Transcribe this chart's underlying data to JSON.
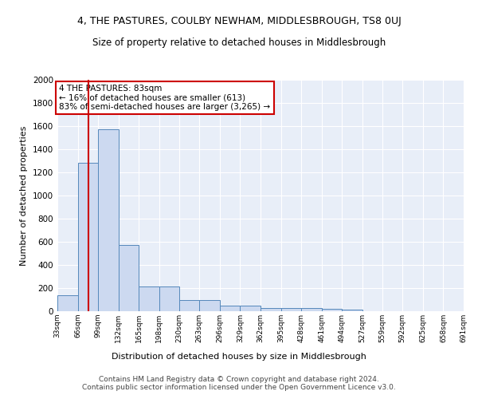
{
  "title": "4, THE PASTURES, COULBY NEWHAM, MIDDLESBROUGH, TS8 0UJ",
  "subtitle": "Size of property relative to detached houses in Middlesbrough",
  "xlabel": "Distribution of detached houses by size in Middlesbrough",
  "ylabel": "Number of detached properties",
  "bin_edges": [
    33,
    66,
    99,
    132,
    165,
    198,
    230,
    263,
    296,
    329,
    362,
    395,
    428,
    461,
    494,
    527,
    559,
    592,
    625,
    658,
    691
  ],
  "bar_heights": [
    140,
    1280,
    1570,
    570,
    215,
    215,
    100,
    100,
    50,
    50,
    25,
    25,
    25,
    20,
    15,
    0,
    0,
    0,
    0,
    0
  ],
  "bar_color": "#ccd9f0",
  "bar_edge_color": "#5588bb",
  "property_size": 83,
  "vline_color": "#cc0000",
  "annotation_line1": "4 THE PASTURES: 83sqm",
  "annotation_line2": "← 16% of detached houses are smaller (613)",
  "annotation_line3": "83% of semi-detached houses are larger (3,265) →",
  "annotation_box_color": "#ffffff",
  "annotation_box_edge": "#cc0000",
  "ylim": [
    0,
    2000
  ],
  "yticks": [
    0,
    200,
    400,
    600,
    800,
    1000,
    1200,
    1400,
    1600,
    1800,
    2000
  ],
  "bg_color": "#e8eef8",
  "grid_color": "#ffffff",
  "footer": "Contains HM Land Registry data © Crown copyright and database right 2024.\nContains public sector information licensed under the Open Government Licence v3.0.",
  "title_fontsize": 9,
  "subtitle_fontsize": 8.5,
  "footer_fontsize": 6.5
}
